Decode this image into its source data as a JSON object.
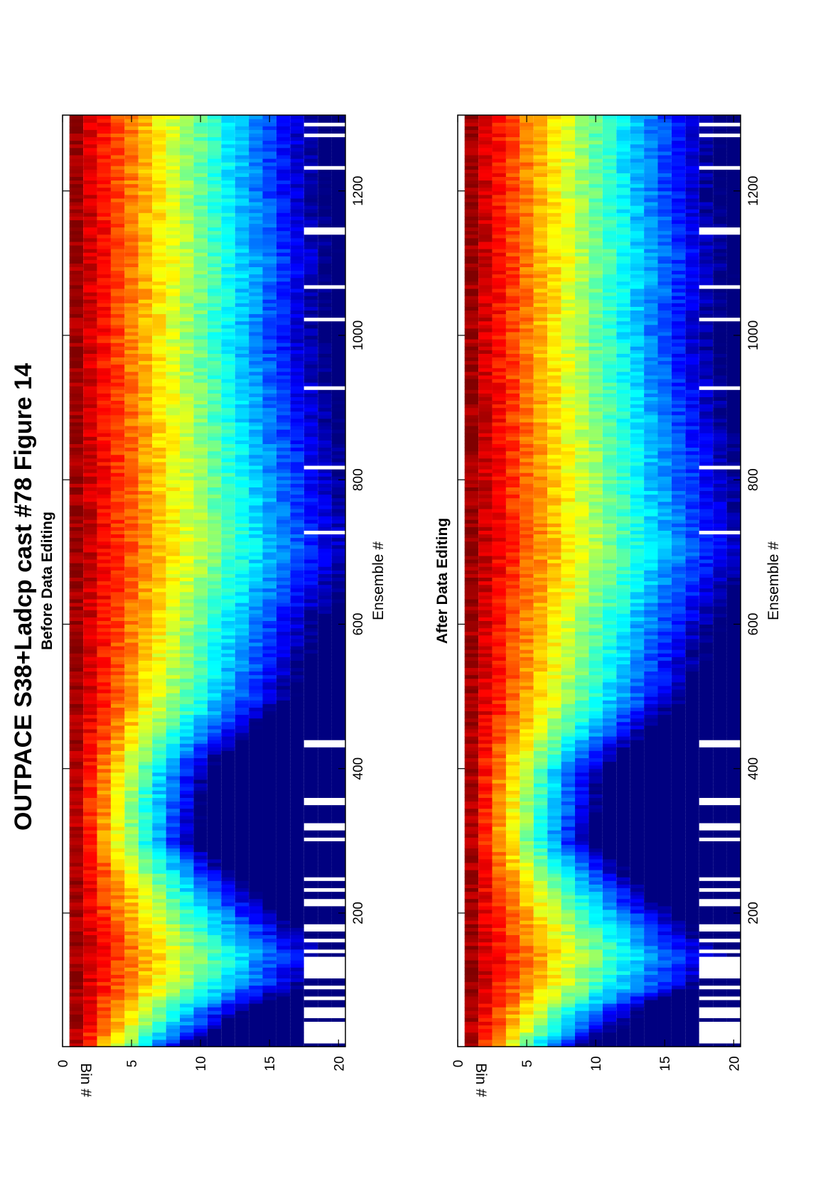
{
  "title": "OUTPACE S38+Ladcp cast #78  Figure 14",
  "colors": {
    "colormap": "jet",
    "gap": "#ffffff",
    "axes": "#000000"
  },
  "chart_data": [
    {
      "type": "heatmap",
      "title": "Before Data Editing",
      "xlabel": "Ensemble #",
      "ylabel": "Bin #",
      "xlim": [
        15,
        1305
      ],
      "ylim": [
        0,
        20.5
      ],
      "y_reversed": true,
      "xticks": [
        200,
        400,
        600,
        800,
        1000,
        1200
      ],
      "xtick_labels": [
        "200",
        "400",
        "600",
        "800",
        "1000",
        "1200"
      ],
      "yticks": [
        0,
        5,
        10,
        15,
        20
      ],
      "ytick_labels": [
        "0",
        "5",
        "10",
        "15",
        "20"
      ],
      "bins": [
        1,
        20
      ],
      "colormap": "jet",
      "intensity_profile": {
        "ensemble": [
          15,
          40,
          70,
          100,
          140,
          200,
          300,
          400,
          500,
          600,
          700,
          800,
          900,
          1000,
          1100,
          1200,
          1305
        ],
        "bin_at_mid_intensity": [
          4.0,
          5.5,
          6.5,
          8.5,
          9.5,
          7.5,
          4.5,
          5.0,
          8.0,
          9.0,
          10.5,
          10.0,
          9.5,
          9.0,
          9.5,
          9.0,
          9.0
        ]
      },
      "gap_ensembles": [
        22,
        28,
        35,
        44,
        58,
        64,
        80,
        95,
        112,
        124,
        133,
        145,
        160,
        178,
        212,
        230,
        245,
        300,
        318,
        352,
        432,
        725,
        815,
        925,
        1020,
        1065,
        1142,
        1230,
        1275,
        1290
      ]
    },
    {
      "type": "heatmap",
      "title": "After Data Editing",
      "xlabel": "Ensemble #",
      "ylabel": "Bin #",
      "xlim": [
        15,
        1305
      ],
      "ylim": [
        0,
        20.5
      ],
      "y_reversed": true,
      "xticks": [
        200,
        400,
        600,
        800,
        1000,
        1200
      ],
      "xtick_labels": [
        "200",
        "400",
        "600",
        "800",
        "1000",
        "1200"
      ],
      "yticks": [
        0,
        5,
        10,
        15,
        20
      ],
      "ytick_labels": [
        "0",
        "5",
        "10",
        "15",
        "20"
      ],
      "bins": [
        1,
        20
      ],
      "colormap": "jet",
      "intensity_profile": {
        "ensemble": [
          15,
          40,
          70,
          100,
          140,
          200,
          300,
          400,
          500,
          600,
          700,
          800,
          900,
          1000,
          1100,
          1200,
          1305
        ],
        "bin_at_mid_intensity": [
          4.0,
          5.5,
          6.5,
          8.5,
          9.5,
          7.5,
          4.5,
          5.0,
          8.0,
          9.0,
          10.5,
          10.0,
          9.5,
          9.0,
          9.5,
          9.0,
          9.0
        ]
      },
      "gap_ensembles": [
        22,
        28,
        35,
        44,
        58,
        64,
        80,
        95,
        112,
        124,
        133,
        145,
        160,
        178,
        212,
        230,
        245,
        300,
        318,
        352,
        432,
        725,
        815,
        925,
        1020,
        1065,
        1142,
        1230,
        1275,
        1290
      ]
    }
  ]
}
